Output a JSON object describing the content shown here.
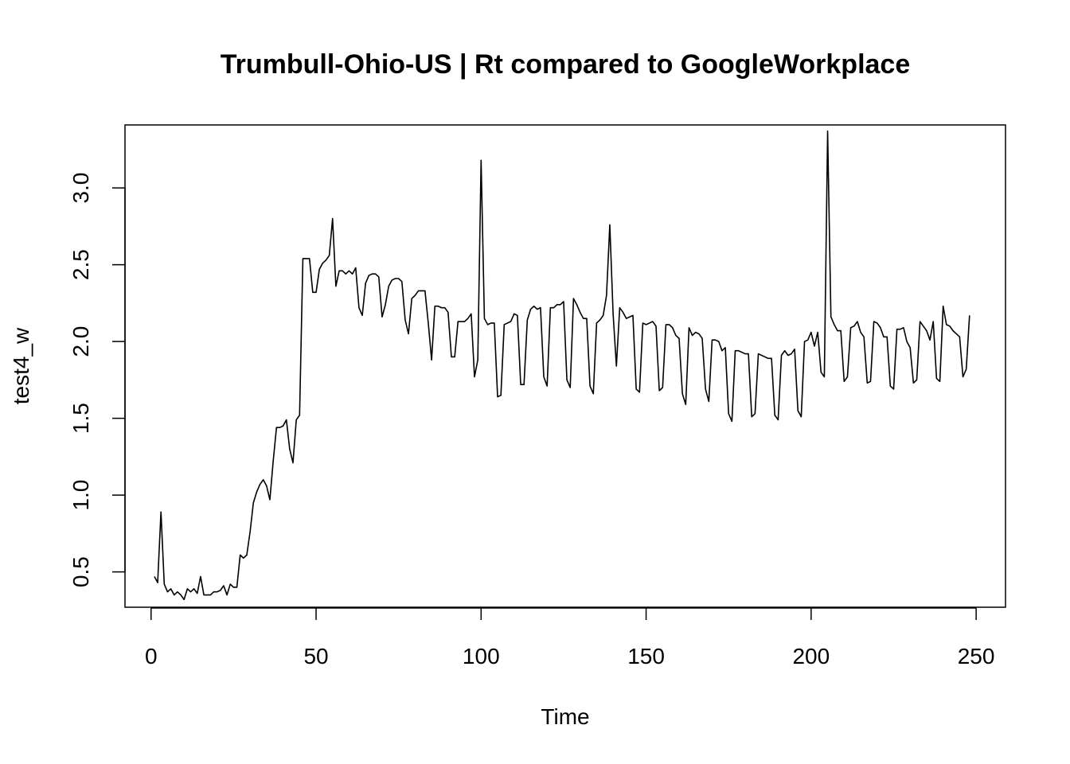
{
  "chart_data": {
    "type": "line",
    "title": "Trumbull-Ohio-US | Rt compared to GoogleWorkplace",
    "xlabel": "Time",
    "ylabel": "test4_w",
    "xlim": [
      -7.9,
      258.9
    ],
    "ylim": [
      0.27,
      3.41
    ],
    "x_ticks": [
      0,
      50,
      100,
      150,
      200,
      250
    ],
    "y_ticks": [
      0.5,
      1.0,
      1.5,
      2.0,
      2.5,
      3.0
    ],
    "x_tick_labels": [
      "0",
      "50",
      "100",
      "150",
      "200",
      "250"
    ],
    "y_tick_labels": [
      "0.5",
      "1.0",
      "1.5",
      "2.0",
      "2.5",
      "3.0"
    ],
    "grid": false,
    "line_color": "#000000",
    "series": [
      {
        "x_start": 1,
        "x_step": 1,
        "values": [
          0.47,
          0.43,
          0.89,
          0.42,
          0.37,
          0.39,
          0.35,
          0.37,
          0.35,
          0.32,
          0.39,
          0.37,
          0.39,
          0.36,
          0.47,
          0.35,
          0.35,
          0.35,
          0.37,
          0.37,
          0.38,
          0.41,
          0.35,
          0.42,
          0.4,
          0.4,
          0.61,
          0.59,
          0.61,
          0.76,
          0.95,
          1.02,
          1.07,
          1.1,
          1.06,
          0.97,
          1.22,
          1.44,
          1.44,
          1.45,
          1.49,
          1.3,
          1.21,
          1.49,
          1.52,
          2.54,
          2.54,
          2.54,
          2.32,
          2.32,
          2.47,
          2.51,
          2.53,
          2.56,
          2.8,
          2.36,
          2.46,
          2.46,
          2.44,
          2.46,
          2.44,
          2.48,
          2.22,
          2.17,
          2.38,
          2.43,
          2.44,
          2.44,
          2.42,
          2.16,
          2.24,
          2.36,
          2.4,
          2.41,
          2.41,
          2.39,
          2.14,
          2.05,
          2.28,
          2.3,
          2.33,
          2.33,
          2.33,
          2.12,
          1.88,
          2.23,
          2.23,
          2.22,
          2.22,
          2.19,
          1.9,
          1.9,
          2.13,
          2.13,
          2.13,
          2.15,
          2.18,
          1.77,
          1.88,
          3.18,
          2.15,
          2.11,
          2.12,
          2.12,
          1.64,
          1.65,
          2.11,
          2.12,
          2.13,
          2.18,
          2.17,
          1.72,
          1.72,
          2.14,
          2.21,
          2.23,
          2.21,
          2.22,
          1.77,
          1.71,
          2.22,
          2.22,
          2.24,
          2.24,
          2.26,
          1.75,
          1.7,
          2.28,
          2.24,
          2.19,
          2.15,
          2.15,
          1.71,
          1.66,
          2.12,
          2.14,
          2.17,
          2.3,
          2.76,
          2.18,
          1.84,
          2.22,
          2.19,
          2.15,
          2.16,
          2.17,
          1.69,
          1.67,
          2.12,
          2.11,
          2.12,
          2.13,
          2.1,
          1.68,
          1.7,
          2.11,
          2.11,
          2.09,
          2.04,
          2.02,
          1.66,
          1.59,
          2.09,
          2.04,
          2.06,
          2.05,
          2.02,
          1.69,
          1.61,
          2.01,
          2.01,
          2.0,
          1.94,
          1.96,
          1.53,
          1.48,
          1.94,
          1.94,
          1.93,
          1.92,
          1.92,
          1.51,
          1.53,
          1.92,
          1.91,
          1.9,
          1.89,
          1.89,
          1.52,
          1.49,
          1.91,
          1.94,
          1.91,
          1.92,
          1.95,
          1.55,
          1.51,
          2.0,
          2.01,
          2.06,
          1.97,
          2.06,
          1.8,
          1.77,
          3.37,
          2.16,
          2.11,
          2.07,
          2.07,
          1.74,
          1.77,
          2.09,
          2.1,
          2.13,
          2.06,
          2.03,
          1.73,
          1.74,
          2.13,
          2.12,
          2.09,
          2.03,
          2.03,
          1.71,
          1.69,
          2.08,
          2.08,
          2.09,
          2.0,
          1.96,
          1.73,
          1.75,
          2.13,
          2.1,
          2.07,
          2.01,
          2.13,
          1.76,
          1.74,
          2.23,
          2.11,
          2.1,
          2.07,
          2.05,
          2.03,
          1.77,
          1.82,
          2.17
        ]
      }
    ]
  }
}
